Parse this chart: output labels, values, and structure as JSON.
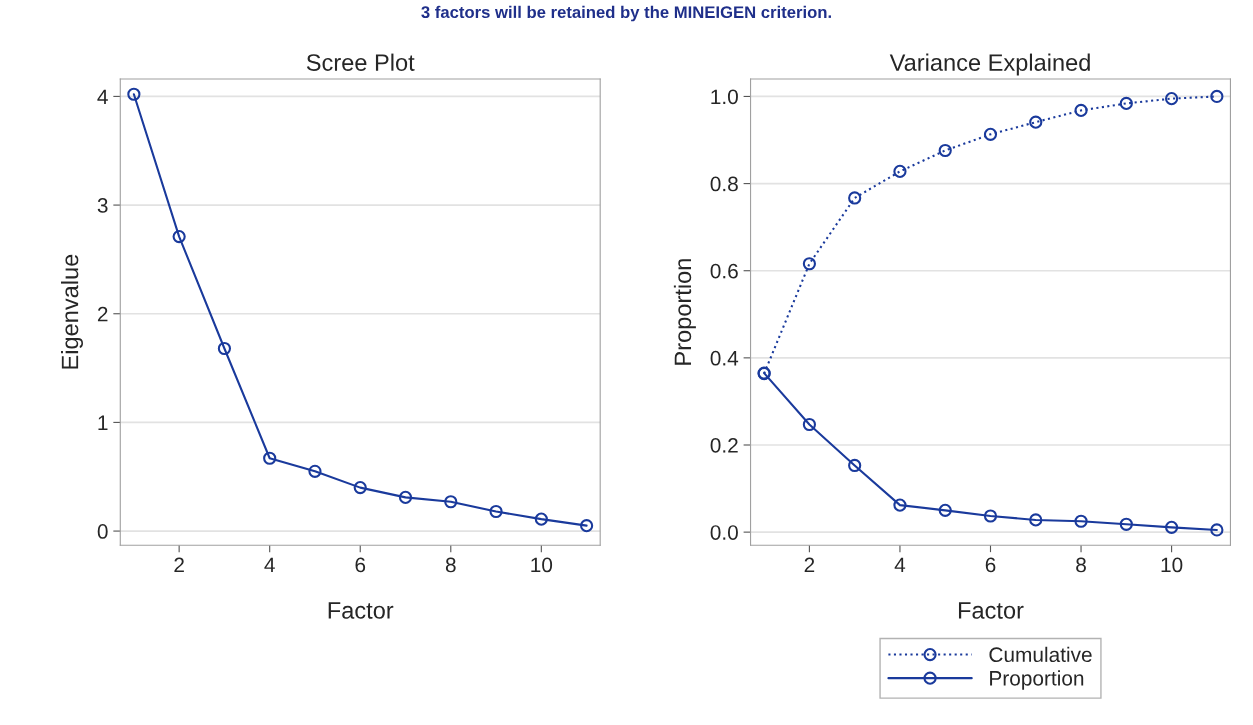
{
  "chart_data": [
    {
      "type": "line",
      "title": "Scree Plot",
      "xlabel": "Factor",
      "ylabel": "Eigenvalue",
      "annotations": [
        "3 factors will be retained by the MINEIGEN criterion."
      ],
      "x": [
        1,
        2,
        3,
        4,
        5,
        6,
        7,
        8,
        9,
        10,
        11
      ],
      "series": [
        {
          "color": "#1a3a9c",
          "line_style": "solid",
          "values": [
            4.02,
            2.71,
            1.68,
            0.67,
            0.55,
            0.4,
            0.31,
            0.27,
            0.18,
            0.11,
            0.05
          ]
        }
      ],
      "xlim": [
        0.7,
        11.3
      ],
      "xticks": [
        2,
        4,
        6,
        8,
        10
      ],
      "ylim": [
        -0.13,
        4.16
      ],
      "yticks": [
        0,
        1,
        2,
        3,
        4
      ],
      "grid": "y",
      "marker": "circle",
      "legend": false
    },
    {
      "type": "line",
      "title": "Variance Explained",
      "xlabel": "Factor",
      "ylabel": "Proportion",
      "x": [
        1,
        2,
        3,
        4,
        5,
        6,
        7,
        8,
        9,
        10,
        11
      ],
      "series": [
        {
          "name": "Cumulative",
          "color": "#1a3a9c",
          "line_style": "dotted",
          "values": [
            0.364,
            0.616,
            0.767,
            0.828,
            0.876,
            0.913,
            0.941,
            0.968,
            0.984,
            0.995,
            1.0
          ]
        },
        {
          "name": "Proportion",
          "color": "#1a3a9c",
          "line_style": "solid",
          "values": [
            0.365,
            0.247,
            0.153,
            0.062,
            0.05,
            0.037,
            0.028,
            0.025,
            0.018,
            0.011,
            0.005
          ]
        }
      ],
      "xlim": [
        0.7,
        11.3
      ],
      "xticks": [
        2,
        4,
        6,
        8,
        10
      ],
      "ylim": [
        -0.03,
        1.04
      ],
      "yticks": [
        {
          "value": 0,
          "label": "0.0"
        },
        {
          "value": 0.2,
          "label": "0.2"
        },
        {
          "value": 0.4,
          "label": "0.4"
        },
        {
          "value": 0.6,
          "label": "0.6"
        },
        {
          "value": 0.8,
          "label": "0.8"
        },
        {
          "value": 1.0,
          "label": "1.0"
        }
      ],
      "grid": "y",
      "marker": "circle",
      "legend": "bottom"
    }
  ]
}
